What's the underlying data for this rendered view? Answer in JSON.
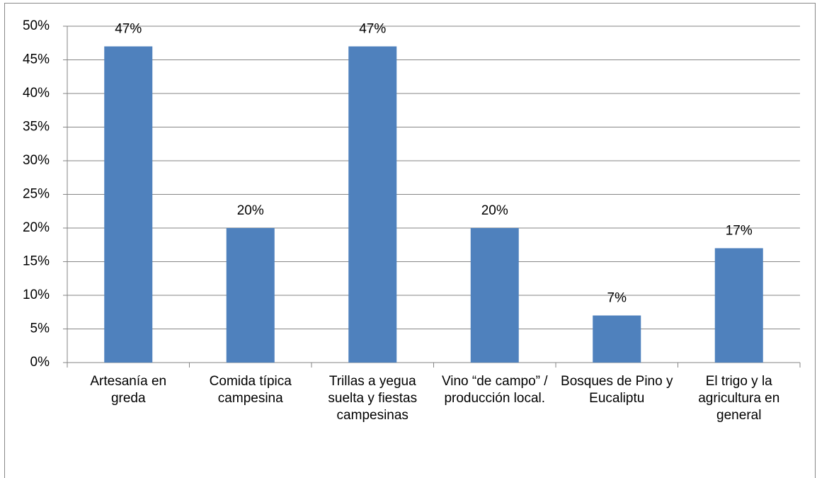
{
  "chart_data": {
    "type": "bar",
    "categories": [
      "Artesanía en greda",
      "Comida típica campesina",
      "Trillas a yegua suelta y fiestas campesinas",
      "Vino “de campo” / producción local.",
      "Bosques de Pino y Eucaliptu",
      "El trigo y la agricultura en general"
    ],
    "values": [
      47,
      20,
      47,
      20,
      7,
      17
    ],
    "value_labels": [
      "47%",
      "20%",
      "47%",
      "20%",
      "7%",
      "17%"
    ],
    "color": "#4f81bd",
    "ylim": [
      0,
      50
    ],
    "yticks": [
      {
        "value": 0,
        "label": "0%"
      },
      {
        "value": 5,
        "label": "5%"
      },
      {
        "value": 10,
        "label": "10%"
      },
      {
        "value": 15,
        "label": "15%"
      },
      {
        "value": 20,
        "label": "20%"
      },
      {
        "value": 25,
        "label": "25%"
      },
      {
        "value": 30,
        "label": "30%"
      },
      {
        "value": 35,
        "label": "35%"
      },
      {
        "value": 40,
        "label": "40%"
      },
      {
        "value": 45,
        "label": "45%"
      },
      {
        "value": 50,
        "label": "50%"
      }
    ],
    "grid": true
  }
}
